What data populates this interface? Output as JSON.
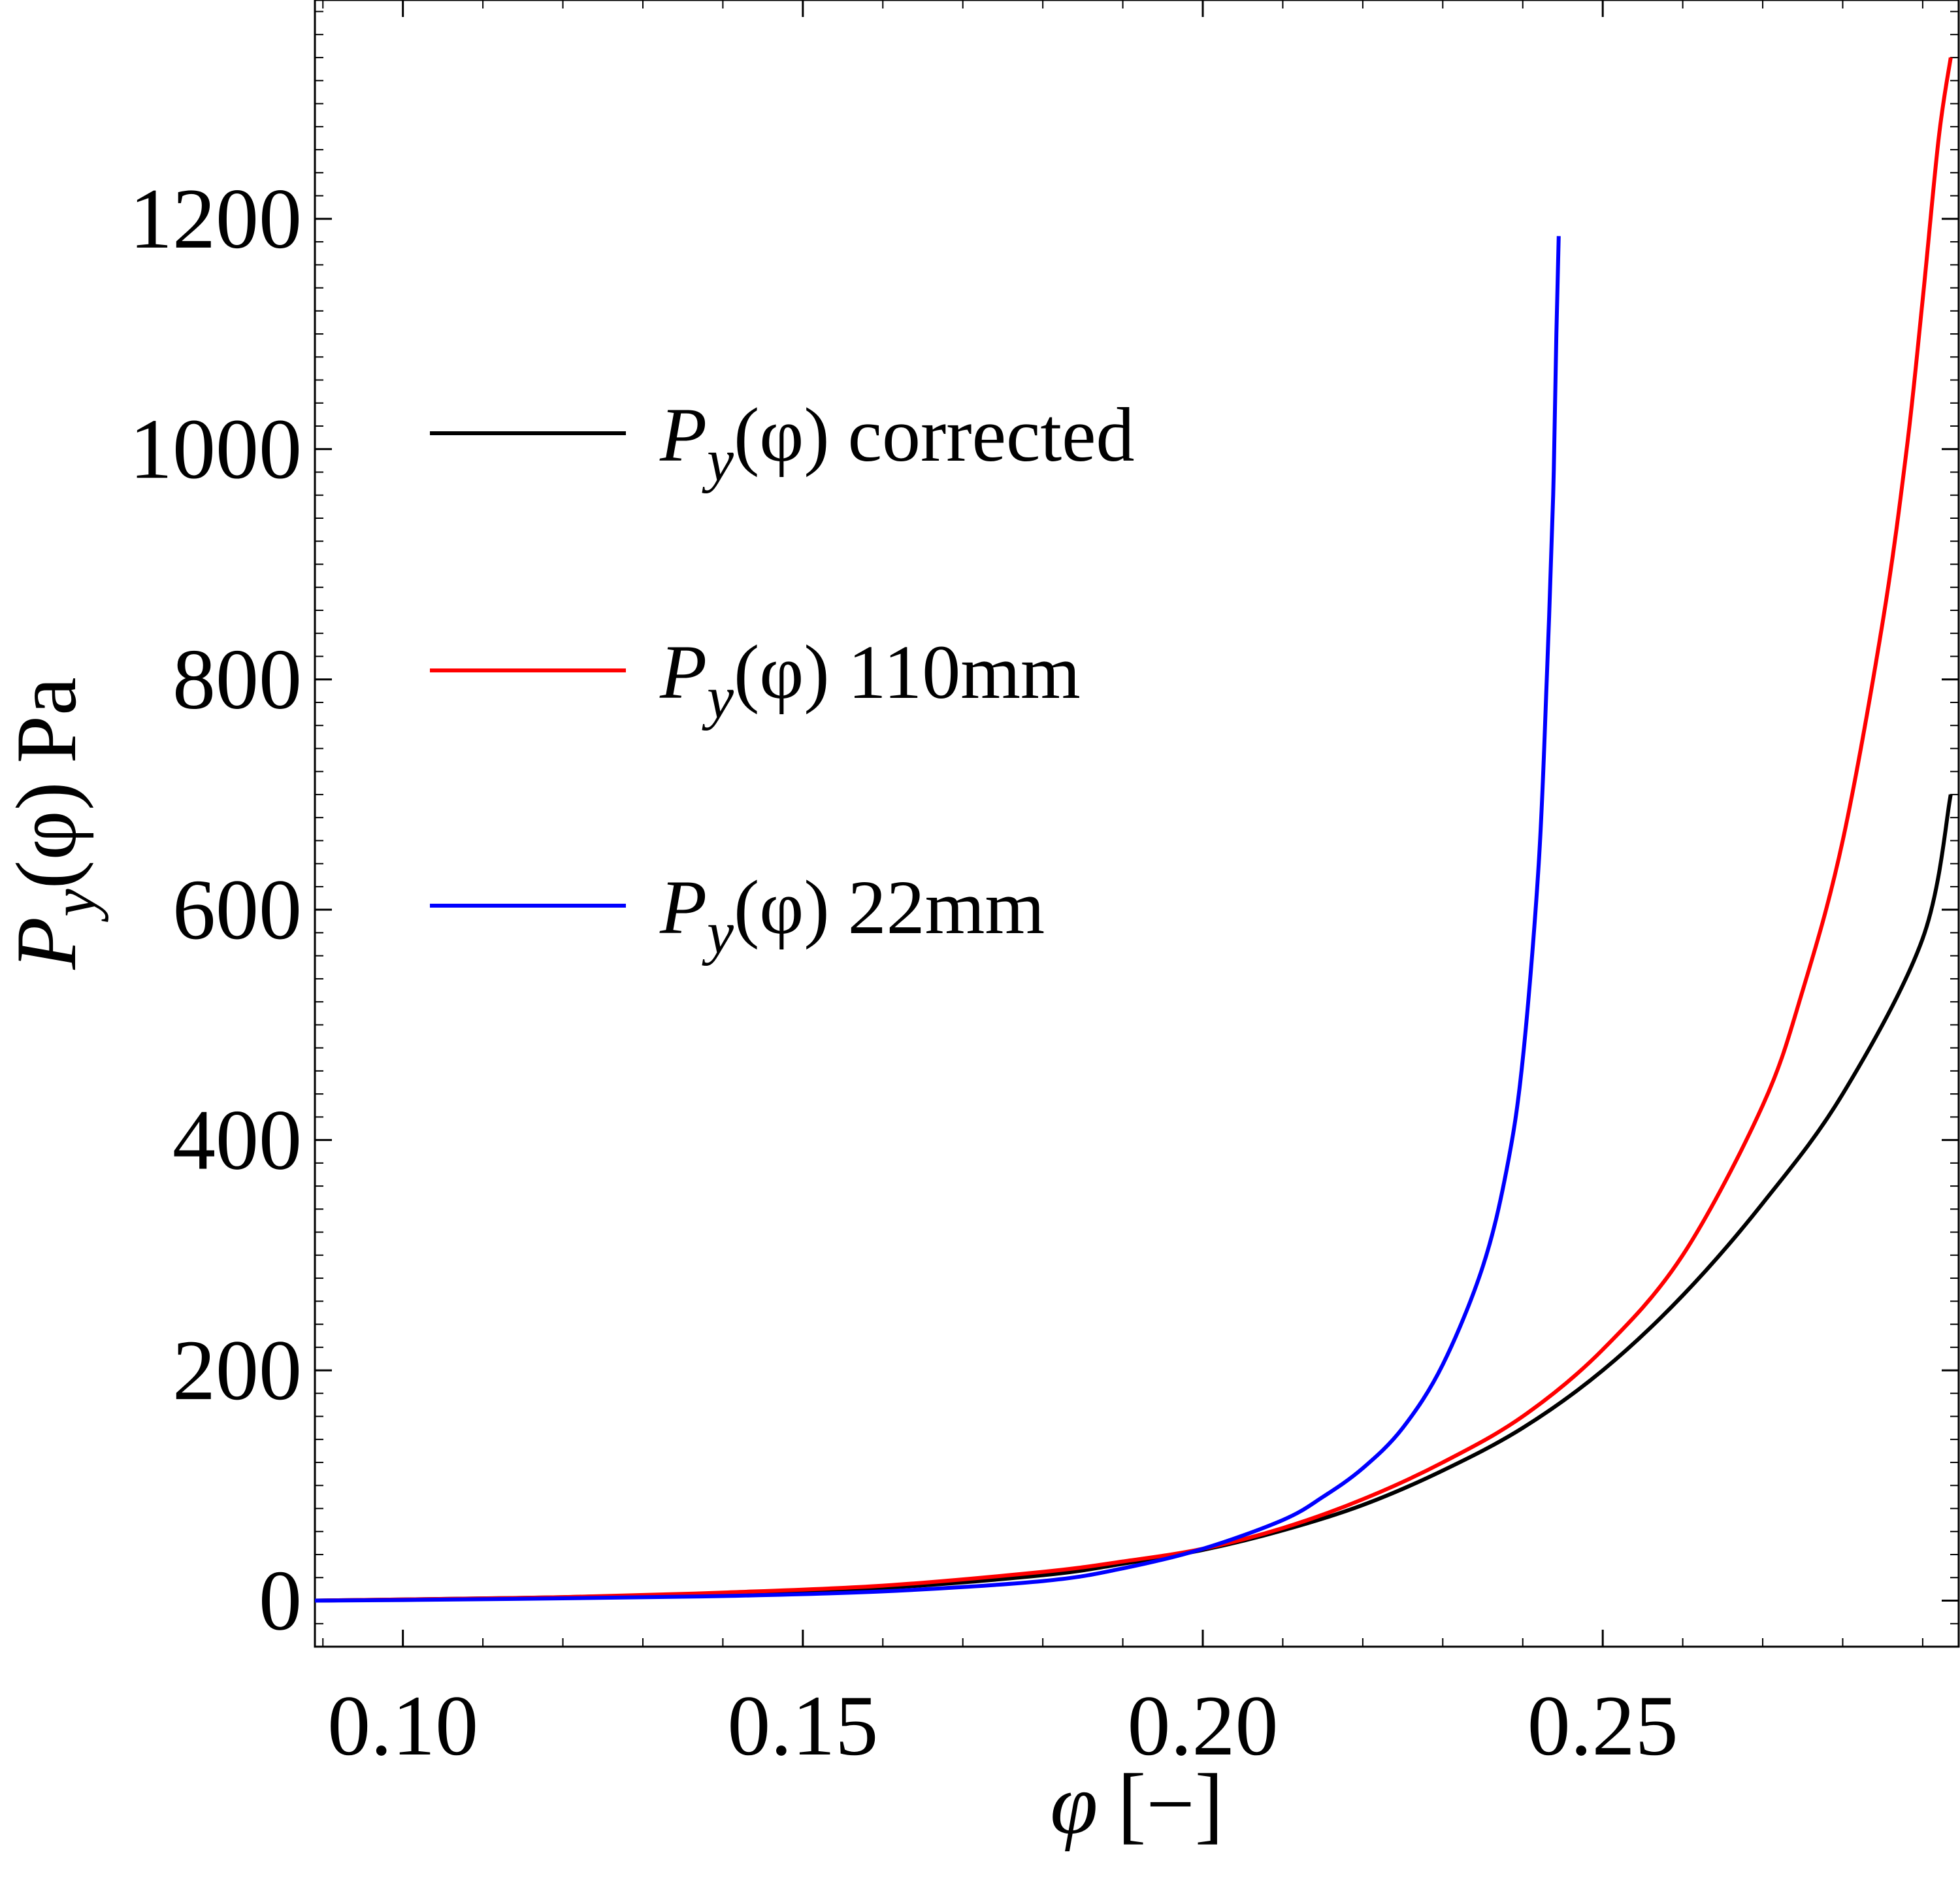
{
  "chart_data": {
    "type": "line",
    "title": "",
    "xlabel": {
      "symbol": "φ",
      "unit": "[−]"
    },
    "ylabel": {
      "symbol": "P",
      "sub": "y",
      "arg": "(φ)",
      "unit": "Pa"
    },
    "xlim": [
      0.089,
      0.2945
    ],
    "ylim": [
      -40,
      1390
    ],
    "xticks": [
      0.1,
      0.15,
      0.2,
      0.25
    ],
    "xtick_labels": [
      "0.10",
      "0.15",
      "0.20",
      "0.25"
    ],
    "yticks": [
      0,
      200,
      400,
      600,
      800,
      1000,
      1200
    ],
    "ytick_labels": [
      "0",
      "200",
      "400",
      "600",
      "800",
      "1000",
      "1200"
    ],
    "grid": false,
    "legend_position": "upper-left",
    "series": [
      {
        "name": "corrected",
        "label": {
          "symbol": "P",
          "sub": "y",
          "arg": "(φ)",
          "suffix": "corrected"
        },
        "color": "#000000",
        "x": [
          0.089,
          0.1,
          0.12,
          0.14,
          0.16,
          0.18,
          0.19,
          0.2,
          0.21,
          0.22,
          0.23,
          0.24,
          0.25,
          0.26,
          0.27,
          0.28,
          0.29,
          0.2935
        ],
        "y": [
          0,
          1,
          3,
          6,
          11,
          22,
          32,
          44,
          61,
          83,
          113,
          150,
          200,
          265,
          345,
          440,
          575,
          700
        ]
      },
      {
        "name": "110mm",
        "label": {
          "symbol": "P",
          "sub": "y",
          "arg": "(φ)",
          "suffix": "110mm"
        },
        "color": "#ff0000",
        "x": [
          0.089,
          0.1,
          0.12,
          0.14,
          0.16,
          0.18,
          0.19,
          0.2,
          0.21,
          0.22,
          0.23,
          0.24,
          0.25,
          0.26,
          0.27,
          0.275,
          0.28,
          0.285,
          0.288,
          0.29,
          0.292,
          0.2935
        ],
        "y": [
          0,
          1,
          3,
          7,
          13,
          25,
          34,
          45,
          63,
          88,
          120,
          160,
          218,
          300,
          430,
          530,
          660,
          850,
          1000,
          1130,
          1270,
          1340
        ]
      },
      {
        "name": "22mm",
        "label": {
          "symbol": "P",
          "sub": "y",
          "arg": "(φ)",
          "suffix": "22mm"
        },
        "color": "#0000ff",
        "x": [
          0.089,
          0.1,
          0.12,
          0.14,
          0.16,
          0.18,
          0.19,
          0.2,
          0.21,
          0.215,
          0.22,
          0.225,
          0.23,
          0.235,
          0.238,
          0.24,
          0.242,
          0.243,
          0.2438,
          0.2442,
          0.2445
        ],
        "y": [
          0,
          0.5,
          2,
          4,
          8,
          17,
          28,
          45,
          70,
          90,
          115,
          150,
          205,
          290,
          375,
          470,
          640,
          800,
          960,
          1100,
          1185
        ]
      }
    ]
  }
}
